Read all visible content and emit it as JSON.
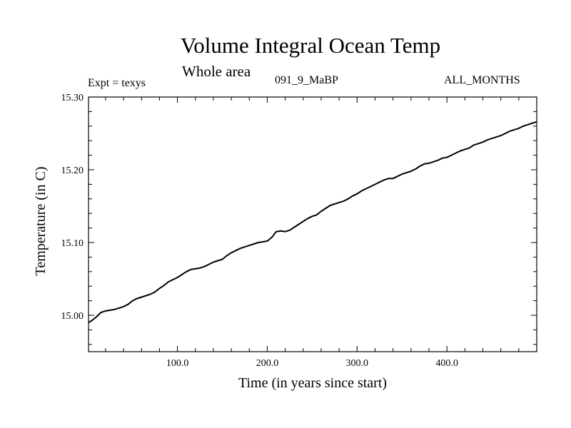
{
  "header": {
    "title": "Volume Integral Ocean Temp",
    "subtitle": "Whole area",
    "expt_label": "Expt = texys",
    "run_label": "091_9_MaBP",
    "months_label": "ALL_MONTHS"
  },
  "chart_data": {
    "type": "line",
    "title": "Volume Integral Ocean Temp",
    "subtitle": "Whole area",
    "xlabel": "Time (in years since start)",
    "ylabel": "Temperature (in C)",
    "xlim": [
      1,
      500
    ],
    "ylim": [
      14.95,
      15.3
    ],
    "x_ticks": [
      100,
      200,
      300,
      400
    ],
    "x_tick_labels": [
      "100.0",
      "200.0",
      "300.0",
      "400.0"
    ],
    "y_ticks": [
      15.0,
      15.1,
      15.2,
      15.3
    ],
    "y_tick_labels": [
      "15.00",
      "15.10",
      "15.20",
      "15.30"
    ],
    "grid": false,
    "line_color": "#000000",
    "series": [
      {
        "x": [
          1,
          5,
          10,
          15,
          20,
          25,
          30,
          35,
          40,
          45,
          50,
          55,
          60,
          65,
          70,
          75,
          80,
          85,
          90,
          95,
          100,
          105,
          110,
          115,
          120,
          125,
          130,
          135,
          140,
          145,
          150,
          155,
          160,
          165,
          170,
          175,
          180,
          185,
          190,
          195,
          200,
          205,
          210,
          215,
          220,
          225,
          230,
          235,
          240,
          245,
          250,
          255,
          260,
          265,
          270,
          275,
          280,
          285,
          290,
          295,
          300,
          305,
          310,
          315,
          320,
          325,
          330,
          335,
          340,
          345,
          350,
          355,
          360,
          365,
          370,
          375,
          380,
          385,
          390,
          395,
          400,
          405,
          410,
          415,
          420,
          425,
          430,
          435,
          440,
          445,
          450,
          455,
          460,
          465,
          470,
          475,
          480,
          485,
          490,
          495,
          500
        ],
        "y": [
          14.99,
          14.993,
          14.998,
          15.004,
          15.006,
          15.007,
          15.008,
          15.01,
          15.012,
          15.015,
          15.02,
          15.023,
          15.025,
          15.027,
          15.029,
          15.032,
          15.037,
          15.041,
          15.046,
          15.049,
          15.052,
          15.056,
          15.06,
          15.063,
          15.064,
          15.065,
          15.067,
          15.07,
          15.073,
          15.075,
          15.077,
          15.082,
          15.086,
          15.089,
          15.092,
          15.094,
          15.096,
          15.098,
          15.1,
          15.101,
          15.102,
          15.107,
          15.115,
          15.116,
          15.115,
          15.117,
          15.121,
          15.125,
          15.129,
          15.133,
          15.136,
          15.138,
          15.143,
          15.147,
          15.151,
          15.153,
          15.155,
          15.157,
          15.16,
          15.164,
          15.167,
          15.171,
          15.174,
          15.177,
          15.18,
          15.183,
          15.186,
          15.188,
          15.188,
          15.191,
          15.194,
          15.196,
          15.198,
          15.201,
          15.205,
          15.208,
          15.209,
          15.211,
          15.213,
          15.216,
          15.217,
          15.22,
          15.223,
          15.226,
          15.228,
          15.23,
          15.234,
          15.236,
          15.238,
          15.241,
          15.243,
          15.245,
          15.247,
          15.25,
          15.253,
          15.255,
          15.257,
          15.26,
          15.262,
          15.264,
          15.266
        ]
      }
    ]
  }
}
